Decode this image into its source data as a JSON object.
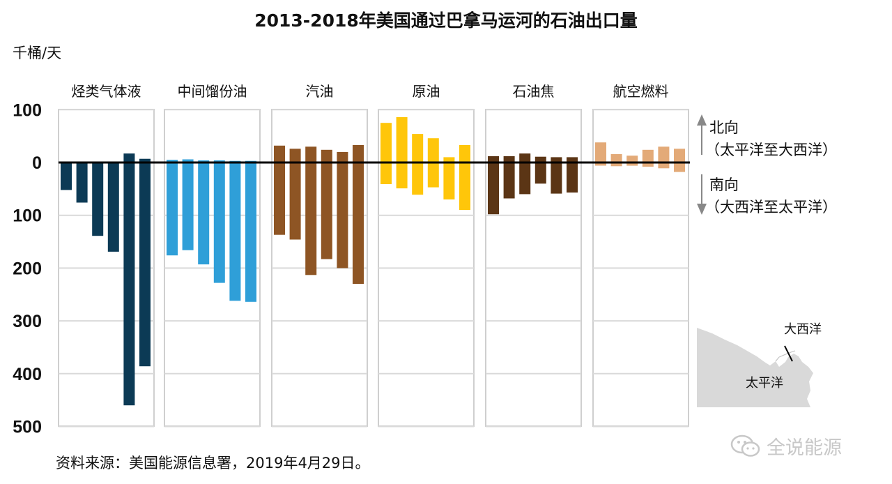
{
  "title": "2013-2018年美国通过巴拿马运河的石油出口量",
  "unit": "千桶/天",
  "source": "资料来源：美国能源信息署，2019年4月29日。",
  "watermark": "全说能源",
  "direction": {
    "north_label": "北向",
    "north_desc": "（太平洋至大西洋）",
    "south_label": "南向",
    "south_desc": "（大西洋至太平洋）"
  },
  "map": {
    "atlantic": "大西洋",
    "pacific": "太平洋"
  },
  "chart_data": {
    "type": "bar",
    "xlabel": "",
    "ylabel": "千桶/天",
    "ylim": [
      -500,
      100
    ],
    "yticks": [
      {
        "value": 100,
        "label": "100"
      },
      {
        "value": 0,
        "label": "0"
      },
      {
        "value": -100,
        "label": "100"
      },
      {
        "value": -200,
        "label": "200"
      },
      {
        "value": -300,
        "label": "300"
      },
      {
        "value": -400,
        "label": "400"
      },
      {
        "value": -500,
        "label": "500"
      }
    ],
    "grid": true,
    "categories": [
      "烃类气体液",
      "中间馏份油",
      "汽油",
      "原油",
      "石油焦",
      "航空燃料"
    ],
    "colors": [
      "#0c3a55",
      "#2f9fd8",
      "#8e5524",
      "#ffc60a",
      "#5b3515",
      "#e3aa78"
    ],
    "series": [
      {
        "north": [
          0,
          0,
          0,
          2,
          17,
          7
        ],
        "south": [
          52,
          76,
          139,
          169,
          460,
          386
        ]
      },
      {
        "north": [
          5,
          6,
          4,
          4,
          3,
          3
        ],
        "south": [
          176,
          166,
          193,
          228,
          262,
          264
        ]
      },
      {
        "north": [
          32,
          26,
          30,
          24,
          20,
          33
        ],
        "south": [
          137,
          146,
          213,
          183,
          200,
          230
        ]
      },
      {
        "north": [
          75,
          86,
          54,
          46,
          10,
          33
        ],
        "south": [
          41,
          49,
          61,
          47,
          70,
          90
        ]
      },
      {
        "north": [
          12,
          12,
          17,
          11,
          10,
          10
        ],
        "south": [
          98,
          68,
          60,
          40,
          59,
          57
        ]
      },
      {
        "north": [
          38,
          16,
          13,
          24,
          30,
          26
        ],
        "south": [
          6,
          7,
          6,
          8,
          11,
          18
        ]
      }
    ]
  }
}
